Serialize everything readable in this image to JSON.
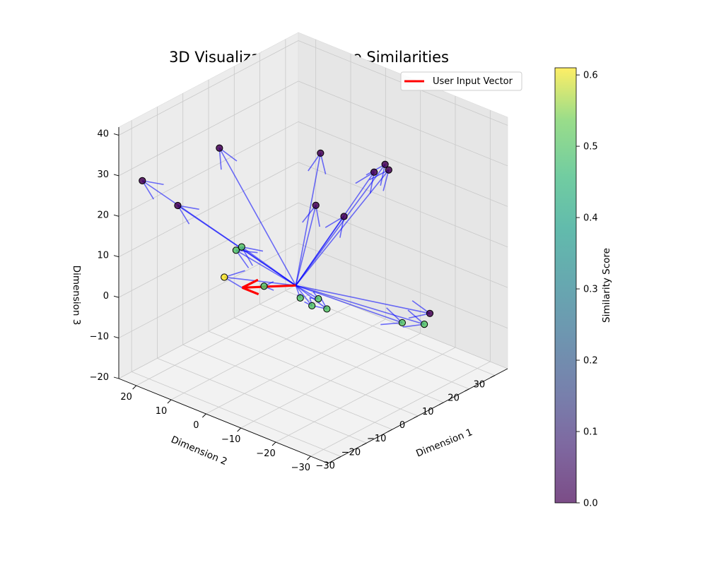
{
  "chart_data": {
    "type": "scatter3d",
    "title": "3D Visualization of Recipe Similarities",
    "x_axis": {
      "label": "Dimension 1",
      "ticks": [
        -30,
        -20,
        -10,
        0,
        10,
        20,
        30
      ],
      "range": [
        -35,
        35
      ]
    },
    "y_axis": {
      "label": "Dimension 2",
      "ticks": [
        -30,
        -20,
        -10,
        0,
        10,
        20
      ],
      "range": [
        -35,
        25
      ]
    },
    "z_axis": {
      "label": "Dimension 3",
      "ticks": [
        -20,
        -10,
        0,
        10,
        20,
        30,
        40
      ],
      "range": [
        -20,
        42
      ]
    },
    "colorbar": {
      "label": "Similarity Score",
      "ticks": [
        0.0,
        0.1,
        0.2,
        0.3,
        0.4,
        0.5,
        0.6
      ],
      "range": [
        0.0,
        0.61
      ],
      "colormap": "viridis"
    },
    "legend": {
      "entry": "User Input Vector",
      "color": "#ff0000",
      "placement": "upper-right"
    },
    "origin": [
      0,
      0,
      0
    ],
    "user_vector": [
      -10,
      8,
      0
    ],
    "vector_color": "#0000ff",
    "points": [
      {
        "x": -9.5,
        "y": 13.5,
        "z": 0.5,
        "score": 0.61
      },
      {
        "x": -5.7,
        "y": 4.9,
        "z": 0.0,
        "score": 0.5
      },
      {
        "x": 8.0,
        "y": 23.0,
        "z": -2.0,
        "score": 0.5
      },
      {
        "x": 9.5,
        "y": 22.5,
        "z": -1.5,
        "score": 0.5
      },
      {
        "x": 5.7,
        "y": 2.9,
        "z": -6.0,
        "score": 0.5
      },
      {
        "x": 8.4,
        "y": -0.3,
        "z": -6.0,
        "score": 0.5
      },
      {
        "x": 11.2,
        "y": 3.6,
        "z": -10.0,
        "score": 0.5
      },
      {
        "x": 12.4,
        "y": 0.2,
        "z": -10.0,
        "score": 0.5
      },
      {
        "x": 21.1,
        "y": -15.0,
        "z": -11.0,
        "score": 0.5
      },
      {
        "x": 19.1,
        "y": -22.8,
        "z": -8.0,
        "score": 0.5
      },
      {
        "x": 12.7,
        "y": -29.1,
        "z": -1.0,
        "score": 0.0
      },
      {
        "x": -11.7,
        "y": -15.7,
        "z": 42.0,
        "score": 0.0
      },
      {
        "x": -28.4,
        "y": 1.0,
        "z": 43.0,
        "score": 0.0
      },
      {
        "x": -15.4,
        "y": 22.5,
        "z": 17.0,
        "score": 0.0
      },
      {
        "x": -21.2,
        "y": 28.4,
        "z": 23.0,
        "score": 0.0
      },
      {
        "x": -5.5,
        "y": -9.8,
        "z": 25.0,
        "score": 0.0
      },
      {
        "x": 4.8,
        "y": -10.3,
        "z": 19.0,
        "score": 0.0
      },
      {
        "x": 3.0,
        "y": -23.4,
        "z": 37.0,
        "score": 0.0
      },
      {
        "x": 1.3,
        "y": -25.7,
        "z": 37.0,
        "score": 0.0
      },
      {
        "x": -2.1,
        "y": -24.0,
        "z": 37.0,
        "score": 0.0
      }
    ],
    "grid": true
  }
}
